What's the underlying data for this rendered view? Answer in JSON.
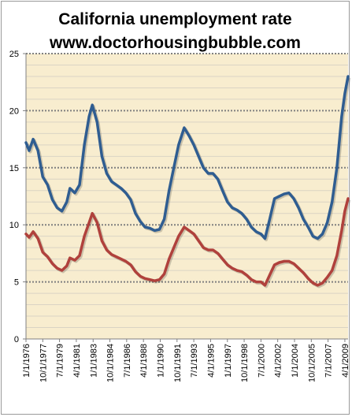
{
  "chart_data": {
    "type": "line",
    "title": "California unemployment rate",
    "subtitle": "www.doctorhousingbubble.com",
    "xlabel": "",
    "ylabel": "",
    "ylim": [
      0,
      25
    ],
    "yticks": [
      "0",
      "5",
      "10",
      "15",
      "20",
      "25"
    ],
    "x_ticks": [
      "1/1/1976",
      "10/1/1977",
      "7/1/1979",
      "4/1/1981",
      "1/1/1983",
      "10/1/1984",
      "7/1/1986",
      "4/1/1988",
      "1/1/1990",
      "10/1/1991",
      "7/1/1993",
      "4/1/1995",
      "1/1/1997",
      "10/1/1998",
      "7/1/2000",
      "4/1/2002",
      "1/1/2004",
      "10/1/2005",
      "7/1/2007",
      "4/1/2009"
    ],
    "x_start": "1/1/1976",
    "x_end": "8/1/2009",
    "grid": true,
    "legend": "none",
    "colors": {
      "upper": "#2f5d91",
      "lower": "#b0413c"
    },
    "series": [
      {
        "values": [
          [
            "1/1/1976",
            17.2
          ],
          [
            "5/1/1976",
            16.5
          ],
          [
            "10/1/1976",
            17.5
          ],
          [
            "4/1/1977",
            16.5
          ],
          [
            "10/1/1977",
            14.2
          ],
          [
            "4/1/1978",
            13.5
          ],
          [
            "10/1/1978",
            12.2
          ],
          [
            "4/1/1979",
            11.5
          ],
          [
            "10/1/1979",
            11.2
          ],
          [
            "4/1/1980",
            12.0
          ],
          [
            "8/1/1980",
            13.2
          ],
          [
            "2/1/1981",
            12.8
          ],
          [
            "8/1/1981",
            13.5
          ],
          [
            "2/1/1982",
            17.0
          ],
          [
            "8/1/1982",
            19.5
          ],
          [
            "12/1/1982",
            20.5
          ],
          [
            "6/1/1983",
            19.0
          ],
          [
            "12/1/1983",
            16.0
          ],
          [
            "6/1/1984",
            14.5
          ],
          [
            "12/1/1984",
            13.8
          ],
          [
            "6/1/1985",
            13.5
          ],
          [
            "12/1/1985",
            13.2
          ],
          [
            "6/1/1986",
            12.8
          ],
          [
            "12/1/1986",
            12.2
          ],
          [
            "6/1/1987",
            11.0
          ],
          [
            "12/1/1987",
            10.3
          ],
          [
            "6/1/1988",
            9.8
          ],
          [
            "12/1/1988",
            9.7
          ],
          [
            "6/1/1989",
            9.5
          ],
          [
            "12/1/1989",
            9.6
          ],
          [
            "6/1/1990",
            10.5
          ],
          [
            "12/1/1990",
            13.0
          ],
          [
            "6/1/1991",
            15.0
          ],
          [
            "12/1/1991",
            17.0
          ],
          [
            "7/1/1992",
            18.5
          ],
          [
            "1/1/1993",
            17.8
          ],
          [
            "7/1/1993",
            17.0
          ],
          [
            "1/1/1994",
            16.0
          ],
          [
            "7/1/1994",
            15.0
          ],
          [
            "1/1/1995",
            14.5
          ],
          [
            "7/1/1995",
            14.5
          ],
          [
            "1/1/1996",
            14.0
          ],
          [
            "7/1/1996",
            13.0
          ],
          [
            "1/1/1997",
            12.0
          ],
          [
            "7/1/1997",
            11.5
          ],
          [
            "1/1/1998",
            11.3
          ],
          [
            "7/1/1998",
            11.0
          ],
          [
            "1/1/1999",
            10.5
          ],
          [
            "7/1/1999",
            9.8
          ],
          [
            "1/1/2000",
            9.4
          ],
          [
            "7/1/2000",
            9.2
          ],
          [
            "12/1/2000",
            8.8
          ],
          [
            "6/1/2001",
            10.5
          ],
          [
            "12/1/2001",
            12.3
          ],
          [
            "6/1/2002",
            12.5
          ],
          [
            "12/1/2002",
            12.7
          ],
          [
            "6/1/2003",
            12.8
          ],
          [
            "12/1/2003",
            12.3
          ],
          [
            "6/1/2004",
            11.5
          ],
          [
            "12/1/2004",
            10.5
          ],
          [
            "6/1/2005",
            9.8
          ],
          [
            "12/1/2005",
            9.0
          ],
          [
            "6/1/2006",
            8.8
          ],
          [
            "12/1/2006",
            9.2
          ],
          [
            "6/1/2007",
            10.2
          ],
          [
            "12/1/2007",
            12.0
          ],
          [
            "6/1/2008",
            15.0
          ],
          [
            "12/1/2008",
            19.5
          ],
          [
            "4/1/2009",
            21.5
          ],
          [
            "8/1/2009",
            23.0
          ]
        ]
      },
      {
        "values": [
          [
            "1/1/1976",
            9.2
          ],
          [
            "5/1/1976",
            8.9
          ],
          [
            "10/1/1976",
            9.4
          ],
          [
            "4/1/1977",
            8.8
          ],
          [
            "10/1/1977",
            7.6
          ],
          [
            "4/1/1978",
            7.2
          ],
          [
            "10/1/1978",
            6.6
          ],
          [
            "4/1/1979",
            6.2
          ],
          [
            "10/1/1979",
            6.0
          ],
          [
            "4/1/1980",
            6.4
          ],
          [
            "8/1/1980",
            7.1
          ],
          [
            "2/1/1981",
            6.9
          ],
          [
            "8/1/1981",
            7.3
          ],
          [
            "2/1/1982",
            9.0
          ],
          [
            "8/1/1982",
            10.2
          ],
          [
            "12/1/1982",
            11.0
          ],
          [
            "6/1/1983",
            10.2
          ],
          [
            "12/1/1983",
            8.6
          ],
          [
            "6/1/1984",
            7.8
          ],
          [
            "12/1/1984",
            7.4
          ],
          [
            "6/1/1985",
            7.2
          ],
          [
            "12/1/1985",
            7.0
          ],
          [
            "6/1/1986",
            6.8
          ],
          [
            "12/1/1986",
            6.5
          ],
          [
            "6/1/1987",
            5.9
          ],
          [
            "12/1/1987",
            5.5
          ],
          [
            "6/1/1988",
            5.3
          ],
          [
            "12/1/1988",
            5.2
          ],
          [
            "6/1/1989",
            5.1
          ],
          [
            "12/1/1989",
            5.2
          ],
          [
            "6/1/1990",
            5.7
          ],
          [
            "12/1/1990",
            7.0
          ],
          [
            "6/1/1991",
            8.0
          ],
          [
            "12/1/1991",
            9.0
          ],
          [
            "7/1/1992",
            9.8
          ],
          [
            "1/1/1993",
            9.5
          ],
          [
            "7/1/1993",
            9.2
          ],
          [
            "1/1/1994",
            8.6
          ],
          [
            "7/1/1994",
            8.0
          ],
          [
            "1/1/1995",
            7.8
          ],
          [
            "7/1/1995",
            7.8
          ],
          [
            "1/1/1996",
            7.5
          ],
          [
            "7/1/1996",
            7.0
          ],
          [
            "1/1/1997",
            6.5
          ],
          [
            "7/1/1997",
            6.2
          ],
          [
            "1/1/1998",
            6.0
          ],
          [
            "7/1/1998",
            5.9
          ],
          [
            "1/1/1999",
            5.6
          ],
          [
            "7/1/1999",
            5.2
          ],
          [
            "1/1/2000",
            5.0
          ],
          [
            "7/1/2000",
            5.0
          ],
          [
            "12/1/2000",
            4.7
          ],
          [
            "6/1/2001",
            5.6
          ],
          [
            "12/1/2001",
            6.5
          ],
          [
            "6/1/2002",
            6.7
          ],
          [
            "12/1/2002",
            6.8
          ],
          [
            "6/1/2003",
            6.8
          ],
          [
            "12/1/2003",
            6.6
          ],
          [
            "6/1/2004",
            6.2
          ],
          [
            "12/1/2004",
            5.8
          ],
          [
            "6/1/2005",
            5.3
          ],
          [
            "12/1/2005",
            4.9
          ],
          [
            "6/1/2006",
            4.7
          ],
          [
            "12/1/2006",
            4.9
          ],
          [
            "6/1/2007",
            5.4
          ],
          [
            "12/1/2007",
            6.0
          ],
          [
            "6/1/2008",
            7.3
          ],
          [
            "12/1/2008",
            9.5
          ],
          [
            "4/1/2009",
            11.2
          ],
          [
            "8/1/2009",
            12.3
          ]
        ]
      }
    ]
  }
}
